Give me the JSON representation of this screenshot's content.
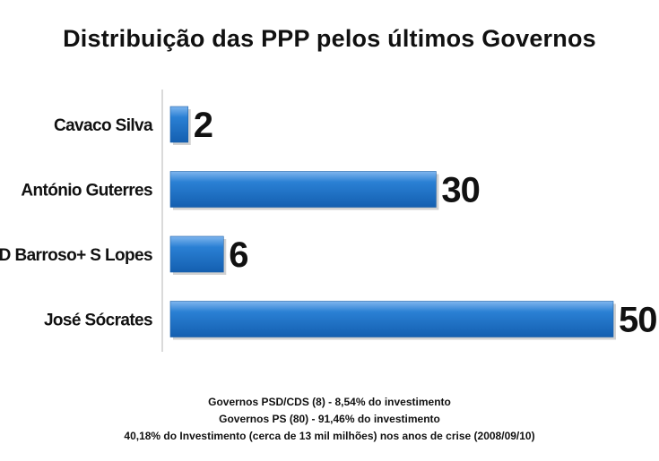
{
  "chart_data": {
    "type": "bar",
    "orientation": "horizontal",
    "title": "Distribuição das PPP pelos últimos Governos",
    "categories": [
      "Cavaco Silva",
      "António Guterres",
      "D Barroso+ S Lopes",
      "José Sócrates"
    ],
    "values": [
      2,
      30,
      6,
      50
    ],
    "data_labels": [
      "2",
      "30",
      "6",
      "50"
    ],
    "xlim": [
      0,
      50
    ],
    "grid": false,
    "legend": "none",
    "bar_color": "#1f73c8"
  },
  "footnotes": [
    "Governos PSD/CDS (8) - 8,54% do investimento",
    "Governos PS (80) - 91,46% do investimento",
    "40,18% do Investimento (cerca de 13 mil milhões)  nos anos de crise (2008/09/10)"
  ]
}
